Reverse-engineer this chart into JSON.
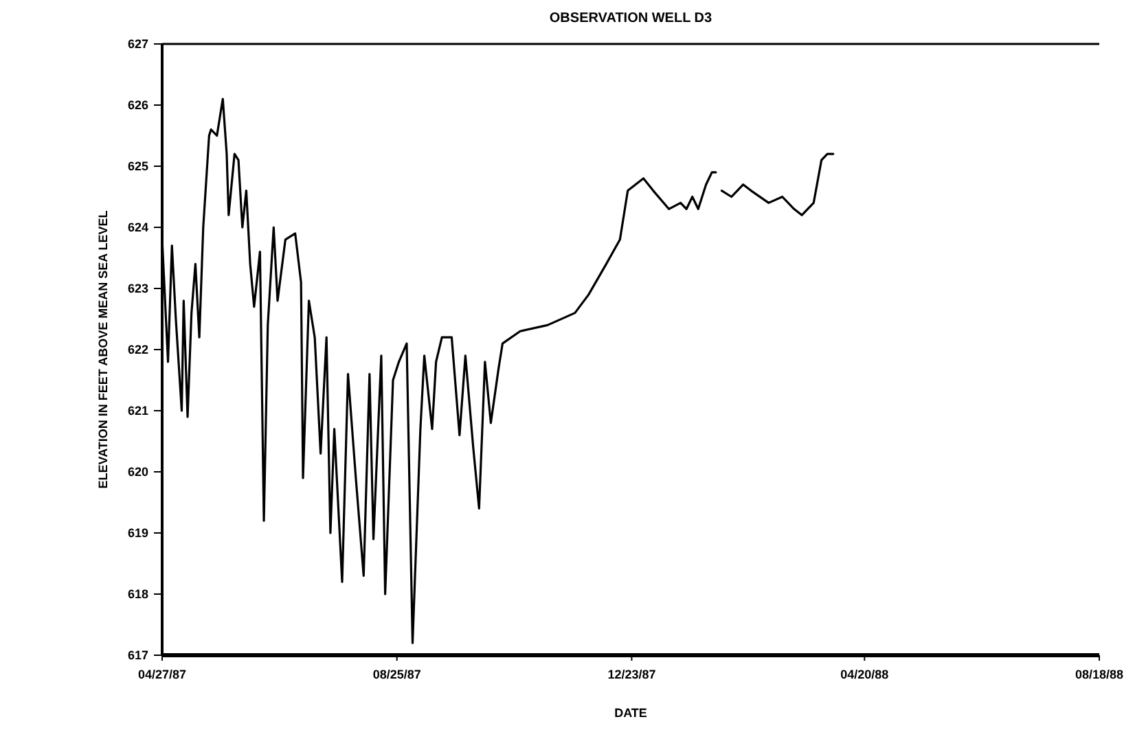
{
  "chart_data": {
    "type": "line",
    "title": "OBSERVATION WELL D3",
    "xlabel": "DATE",
    "ylabel": "ELEVATION IN FEET ABOVE MEAN SEA LEVEL",
    "x": [
      "1987-04-27",
      "1987-04-30",
      "1987-05-02",
      "1987-05-04",
      "1987-05-07",
      "1987-05-08",
      "1987-05-10",
      "1987-05-12",
      "1987-05-14",
      "1987-05-16",
      "1987-05-18",
      "1987-05-21",
      "1987-05-22",
      "1987-05-25",
      "1987-05-28",
      "1987-05-30",
      "1987-05-31",
      "1987-06-03",
      "1987-06-05",
      "1987-06-07",
      "1987-06-09",
      "1987-06-11",
      "1987-06-13",
      "1987-06-16",
      "1987-06-18",
      "1987-06-20",
      "1987-06-23",
      "1987-06-25",
      "1987-06-29",
      "1987-07-04",
      "1987-07-07",
      "1987-07-08",
      "1987-07-11",
      "1987-07-14",
      "1987-07-17",
      "1987-07-20",
      "1987-07-22",
      "1987-07-24",
      "1987-07-28",
      "1987-07-31",
      "1987-08-04",
      "1987-08-08",
      "1987-08-11",
      "1987-08-13",
      "1987-08-17",
      "1987-08-19",
      "1987-08-23",
      "1987-08-26",
      "1987-08-30",
      "1987-09-02",
      "1987-09-06",
      "1987-09-08",
      "1987-09-12",
      "1987-09-14",
      "1987-09-17",
      "1987-09-22",
      "1987-09-26",
      "1987-09-29",
      "1987-10-03",
      "1987-10-06",
      "1987-10-09",
      "1987-10-12",
      "1987-10-16",
      "1987-10-18",
      "1987-10-27",
      "1987-11-10",
      "1987-11-24",
      "1987-12-01",
      "1987-12-10",
      "1987-12-17",
      "1987-12-21",
      "1987-12-29",
      "1988-01-03",
      "1988-01-11",
      "1988-01-17",
      "1988-01-20",
      "1988-01-23",
      "1988-01-26",
      "1988-01-30",
      "1988-02-02",
      "1988-02-04",
      "1988-02-05",
      "1988-02-07",
      "1988-02-12",
      "1988-02-15",
      "1988-02-18",
      "1988-02-22",
      "1988-03-02",
      "1988-03-09",
      "1988-03-15",
      "1988-03-19",
      "1988-03-25",
      "1988-03-29",
      "1988-04-01",
      "1988-04-04"
    ],
    "series": [
      {
        "color": "#000000",
        "values": [
          623.8,
          621.8,
          623.7,
          622.5,
          621.0,
          622.8,
          620.9,
          622.6,
          623.4,
          622.2,
          624.0,
          625.5,
          625.6,
          625.5,
          626.1,
          625.2,
          624.2,
          625.2,
          625.1,
          624.0,
          624.6,
          623.4,
          622.7,
          623.6,
          619.2,
          622.4,
          624.0,
          622.8,
          623.8,
          623.9,
          623.1,
          619.9,
          622.8,
          622.2,
          620.3,
          622.2,
          619.0,
          620.7,
          618.2,
          621.6,
          619.9,
          618.3,
          621.6,
          618.9,
          621.9,
          618.0,
          621.5,
          621.8,
          622.1,
          617.2,
          620.7,
          621.9,
          620.7,
          621.8,
          622.2,
          622.2,
          620.6,
          621.9,
          620.4,
          619.4,
          621.8,
          620.8,
          621.7,
          622.1,
          622.3,
          622.4,
          622.6,
          622.9,
          623.4,
          623.8,
          624.6,
          624.8,
          624.6,
          624.3,
          624.4,
          624.3,
          624.5,
          624.3,
          624.7,
          624.9,
          624.9,
          null,
          624.6,
          624.5,
          624.6,
          624.7,
          624.6,
          624.4,
          624.5,
          624.3,
          624.2,
          624.4,
          625.1,
          625.2,
          625.2
        ]
      }
    ],
    "xlim": [
      "1987-04-27",
      "1988-08-18"
    ],
    "xticks": [
      {
        "value": "1987-04-27",
        "label": "04/27/87"
      },
      {
        "value": "1987-08-25",
        "label": "08/25/87"
      },
      {
        "value": "1987-12-23",
        "label": "12/23/87"
      },
      {
        "value": "1988-04-20",
        "label": "04/20/88"
      },
      {
        "value": "1988-08-18",
        "label": "08/18/88"
      }
    ],
    "ylim": [
      617,
      627
    ],
    "yticks": [
      617,
      618,
      619,
      620,
      621,
      622,
      623,
      624,
      625,
      626,
      627
    ],
    "grid": false,
    "marker": "none",
    "line_style": "solid"
  }
}
